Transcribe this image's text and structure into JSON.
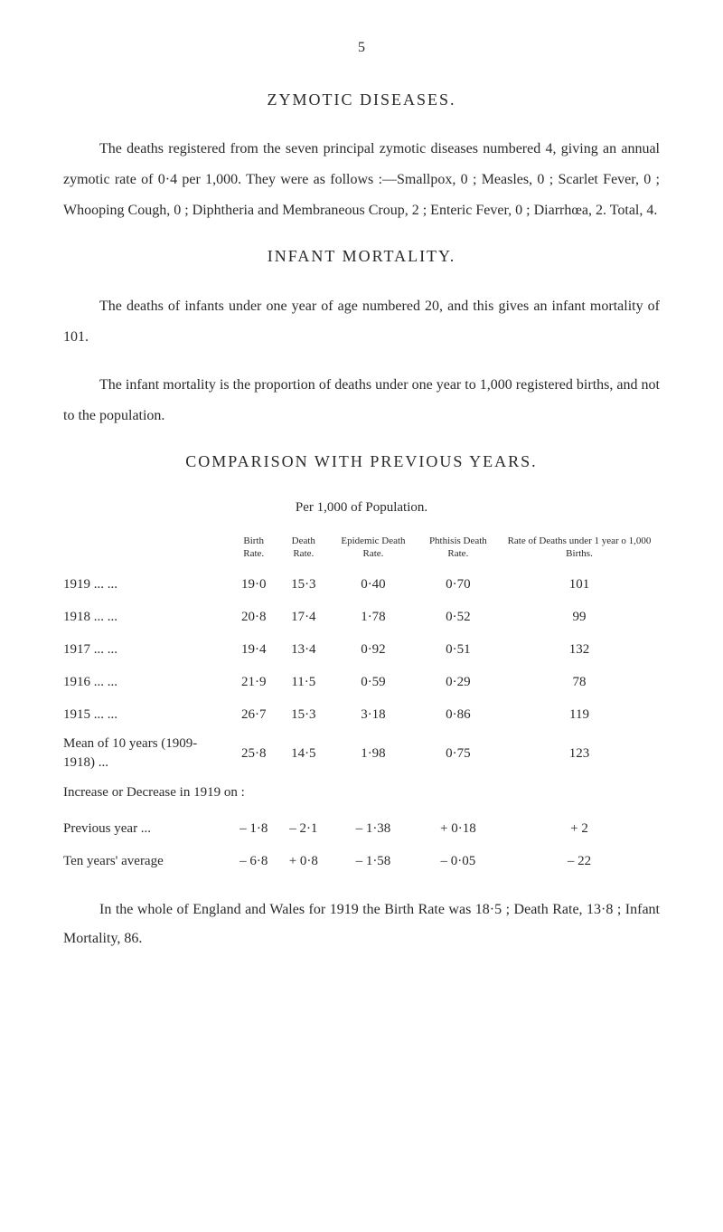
{
  "page_number": "5",
  "section1": {
    "title": "ZYMOTIC DISEASES.",
    "p1": "The deaths registered from the seven principal zymotic diseases numbered 4, giving an annual zymotic rate of 0·4 per 1,000. They were as follows :—Smallpox, 0 ; Measles, 0 ; Scarlet Fever, 0 ; Whooping Cough, 0 ; Diphtheria and Membraneous Croup, 2 ; Enteric Fever, 0 ; Diarrhœa, 2. Total, 4."
  },
  "section2": {
    "title": "INFANT MORTALITY.",
    "p1": "The deaths of infants under one year of age numbered 20, and this gives an infant mortality of 101.",
    "p2": "The infant mortality is the proportion of deaths under one year to 1,000 registered births, and not to the population."
  },
  "comparison": {
    "title": "COMPARISON WITH PREVIOUS YEARS.",
    "subtitle": "Per 1,000 of Population.",
    "columns": [
      "",
      "Birth Rate.",
      "Death Rate.",
      "Epidemic Death Rate.",
      "Phthisis Death Rate.",
      "Rate of Deaths under 1 year o 1,000 Births."
    ],
    "rows": [
      {
        "label": "1919    ...    ...",
        "birth": "19·0",
        "death": "15·3",
        "epidemic": "0·40",
        "phthisis": "0·70",
        "infant": "101"
      },
      {
        "label": "1918    ...    ...",
        "birth": "20·8",
        "death": "17·4",
        "epidemic": "1·78",
        "phthisis": "0·52",
        "infant": "99"
      },
      {
        "label": "1917    ...    ...",
        "birth": "19·4",
        "death": "13·4",
        "epidemic": "0·92",
        "phthisis": "0·51",
        "infant": "132"
      },
      {
        "label": "1916    ...    ...",
        "birth": "21·9",
        "death": "11·5",
        "epidemic": "0·59",
        "phthisis": "0·29",
        "infant": "78"
      },
      {
        "label": "1915    ...    ...",
        "birth": "26·7",
        "death": "15·3",
        "epidemic": "3·18",
        "phthisis": "0·86",
        "infant": "119"
      }
    ],
    "mean_row": {
      "label": "Mean of 10 years (1909-1918) ...",
      "birth": "25·8",
      "death": "14·5",
      "epidemic": "1·98",
      "phthisis": "0·75",
      "infant": "123"
    },
    "increase_label": "Increase or Decrease in 1919 on :",
    "prev_row": {
      "label": "Previous year ...",
      "birth": "– 1·8",
      "death": "– 2·1",
      "epidemic": "– 1·38",
      "phthisis": "+ 0·18",
      "infant": "+ 2"
    },
    "avg_row": {
      "label": "Ten years' average",
      "birth": "– 6·8",
      "death": "+ 0·8",
      "epidemic": "– 1·58",
      "phthisis": "– 0·05",
      "infant": "– 22"
    }
  },
  "footer": {
    "p1": "In the whole of England and Wales for 1919 the Birth Rate was 18·5 ; Death Rate, 13·8 ; Infant Mortality, 86."
  }
}
